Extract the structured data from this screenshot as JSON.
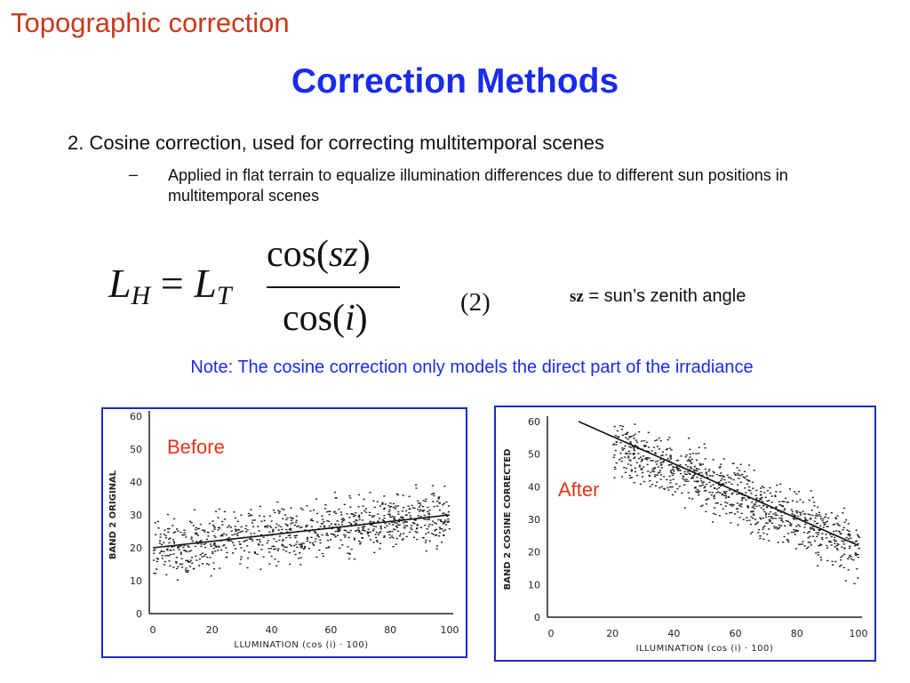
{
  "header": {
    "section_title": "Topographic correction",
    "slide_title": "Correction Methods"
  },
  "content": {
    "bullet": "2. Cosine correction, used for correcting multitemporal scenes",
    "sub_bullet_marker": "–",
    "sub_bullet": "Applied in flat terrain to equalize illumination differences due to different sun positions in multitemporal scenes",
    "note": "Note: The cosine correction only models the direct part of the irradiance"
  },
  "equation": {
    "lhs_var": "L",
    "lhs_sub": "H",
    "equals": "=",
    "rhs_var": "L",
    "rhs_sub": "T",
    "numerator_func": "cos(",
    "numerator_arg": "sz",
    "numerator_close": ")",
    "denominator_func": "cos(",
    "denominator_arg": "i",
    "denominator_close": ")",
    "number": "(2)",
    "definition_symbol": "sz",
    "definition_text": " = sun’s zenith angle"
  },
  "colors": {
    "section_title": "#c8391a",
    "slide_title": "#1a2be8",
    "note": "#1a2be8",
    "plot_label": "#e5341a",
    "plot_frame": "#1a2bc8"
  },
  "chart_data": [
    {
      "type": "scatter",
      "label": "Before",
      "xlabel": "LLUMINATION (cos (i) · 100)",
      "ylabel": "BAND 2 ORIGINAL",
      "xlim": [
        0,
        100
      ],
      "ylim": [
        0,
        60
      ],
      "xticks": [
        0,
        20,
        40,
        60,
        80,
        100
      ],
      "yticks": [
        0,
        10,
        20,
        30,
        40,
        50,
        60
      ],
      "point_cloud": {
        "x_range": [
          0,
          100
        ],
        "y_trend_start": 20,
        "y_trend_end": 30,
        "spread": 8
      },
      "regression_line": {
        "x": [
          0,
          100
        ],
        "y": [
          20,
          30
        ]
      },
      "grid": false
    },
    {
      "type": "scatter",
      "label": "After",
      "xlabel": "ILLUMINATION (cos (i) · 100)",
      "ylabel": "BAND 2 COSINE CORRECTED",
      "xlim": [
        0,
        100
      ],
      "ylim": [
        0,
        60
      ],
      "xticks": [
        0,
        20,
        40,
        60,
        80,
        100
      ],
      "yticks": [
        0,
        10,
        20,
        30,
        40,
        50,
        60
      ],
      "point_cloud": {
        "x_range": [
          20,
          100
        ],
        "y_trend_start": 53,
        "y_trend_end": 22,
        "spread": 9
      },
      "regression_line": {
        "x": [
          9,
          100
        ],
        "y": [
          60,
          22
        ]
      },
      "grid": false
    }
  ]
}
